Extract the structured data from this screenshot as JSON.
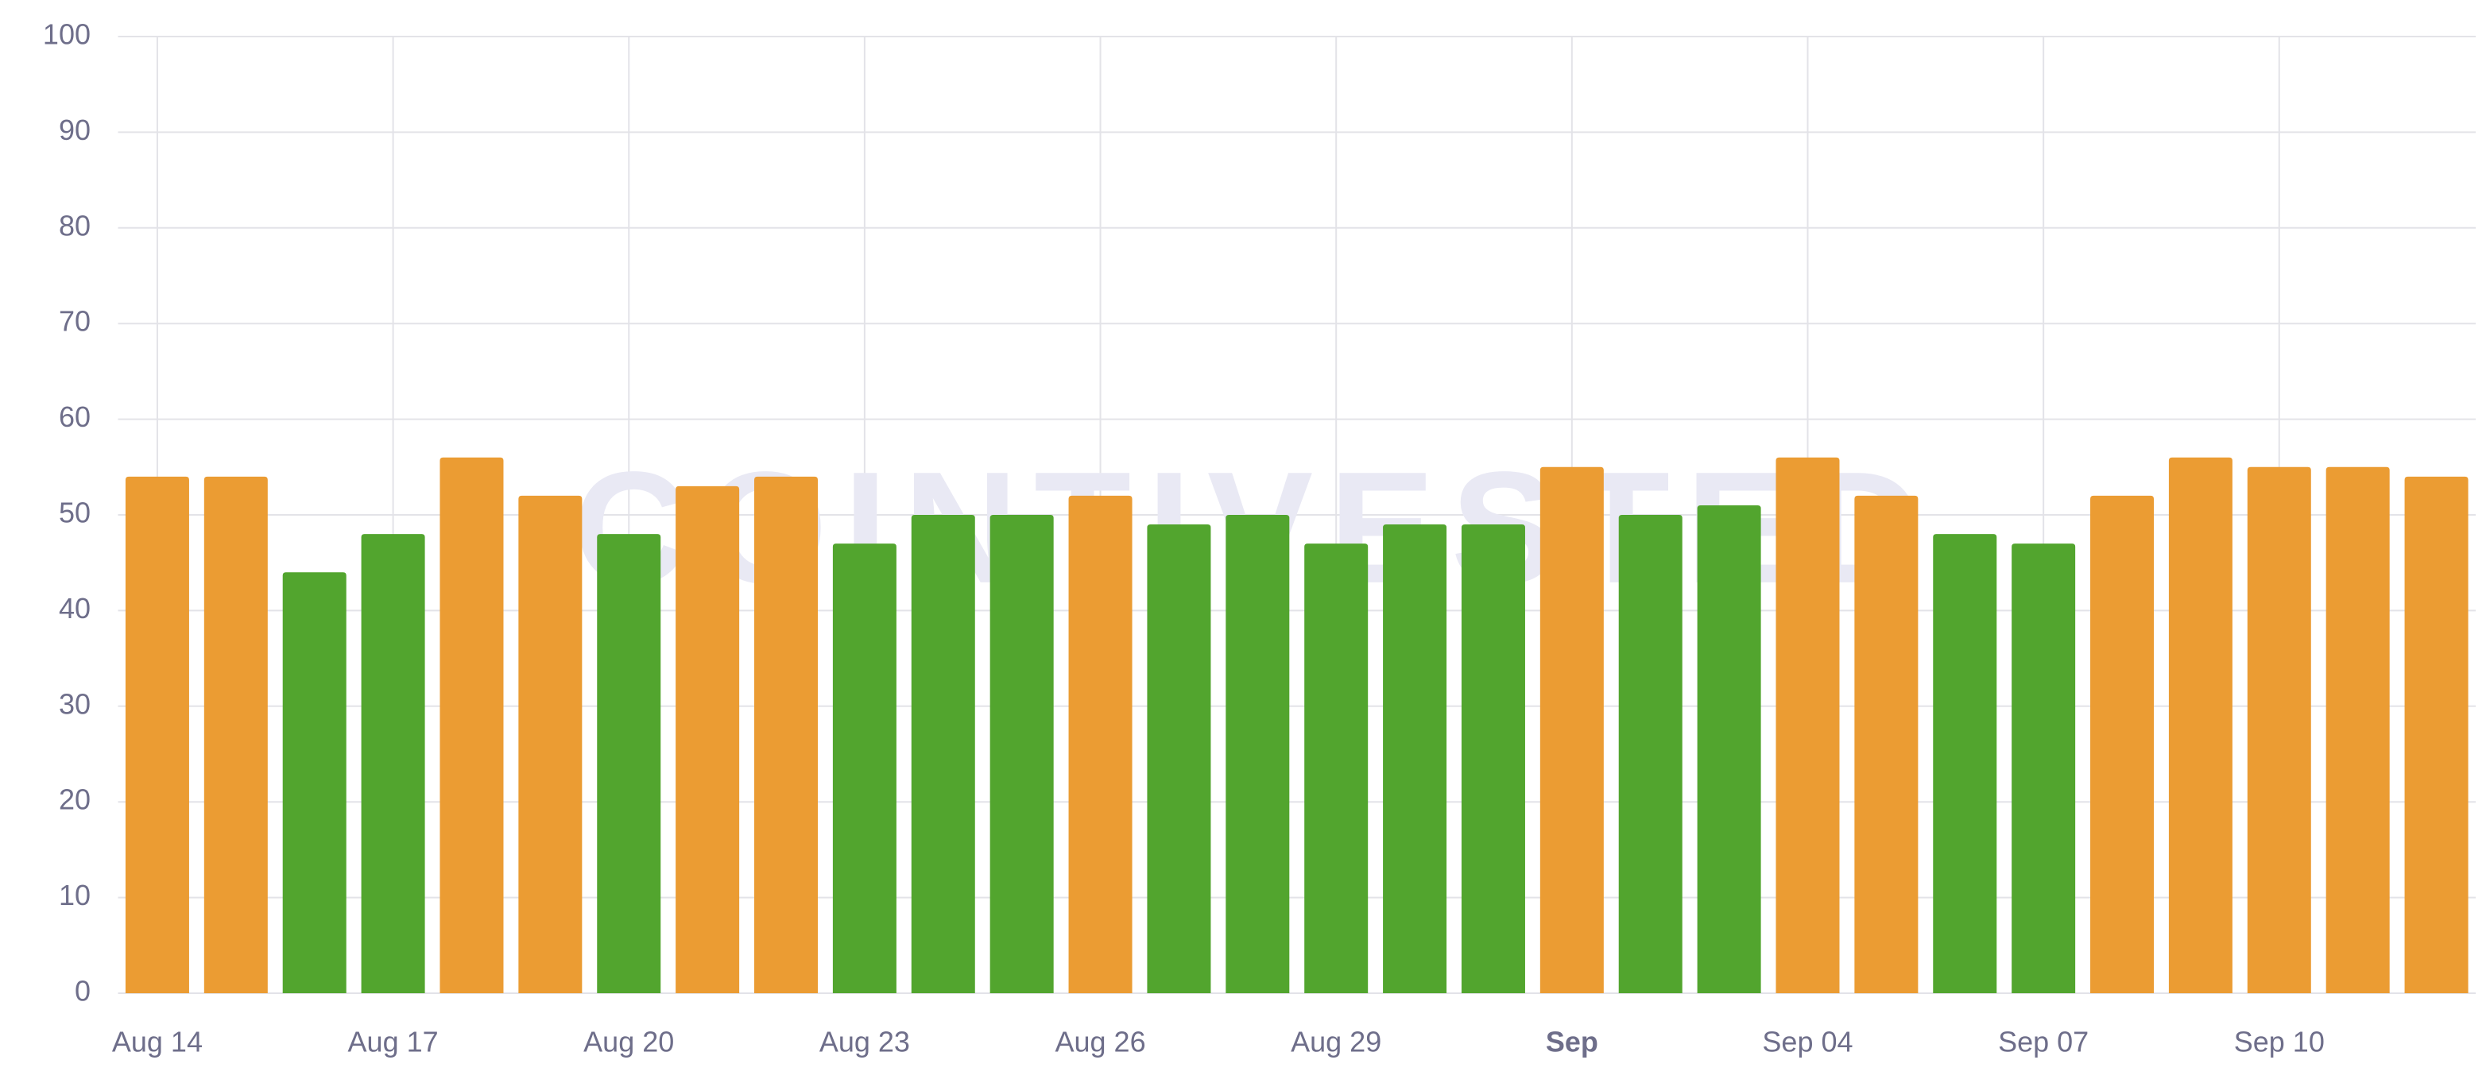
{
  "chart_data": {
    "type": "bar",
    "watermark": "COINTIVESTED",
    "categories": [
      "Aug 14",
      null,
      null,
      "Aug 17",
      null,
      null,
      "Aug 20",
      null,
      null,
      "Aug 23",
      null,
      null,
      "Aug 26",
      null,
      null,
      "Aug 29",
      null,
      null,
      "Sep",
      null,
      null,
      "Sep 04",
      null,
      null,
      "Sep 07",
      null,
      null,
      "Sep 10",
      null,
      null
    ],
    "values": [
      54,
      54,
      44,
      48,
      56,
      52,
      48,
      53,
      54,
      47,
      50,
      50,
      52,
      49,
      50,
      47,
      49,
      49,
      55,
      50,
      51,
      56,
      52,
      48,
      47,
      52,
      56,
      55,
      55,
      54
    ],
    "colors": [
      "#eb9c33",
      "#eb9c33",
      "#52a52e",
      "#52a52e",
      "#eb9c33",
      "#eb9c33",
      "#52a52e",
      "#eb9c33",
      "#eb9c33",
      "#52a52e",
      "#52a52e",
      "#52a52e",
      "#eb9c33",
      "#52a52e",
      "#52a52e",
      "#52a52e",
      "#52a52e",
      "#52a52e",
      "#eb9c33",
      "#52a52e",
      "#52a52e",
      "#eb9c33",
      "#eb9c33",
      "#52a52e",
      "#52a52e",
      "#eb9c33",
      "#eb9c33",
      "#eb9c33",
      "#eb9c33",
      "#eb9c33"
    ],
    "ylim": [
      0,
      100
    ],
    "yticks": [
      0,
      10,
      20,
      30,
      40,
      50,
      60,
      70,
      80,
      90,
      100
    ],
    "grid": true
  }
}
